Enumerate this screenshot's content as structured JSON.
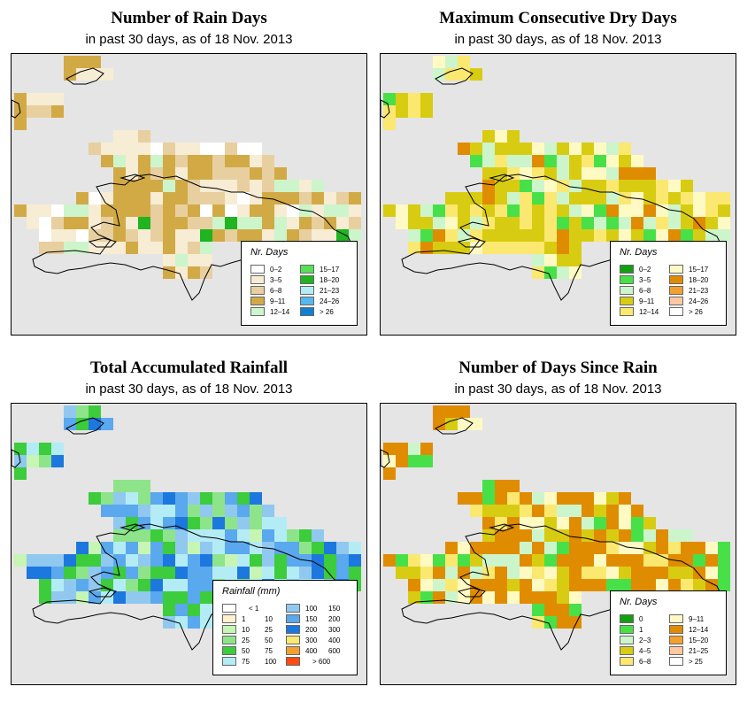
{
  "maps": [
    {
      "id": "rain-days",
      "title": "Number of Rain Days",
      "subtitle": "in past 30 days, as of  18 Nov. 2013",
      "legend": {
        "title": "Nr. Days",
        "items": [
          {
            "label": "0–2",
            "color": "#ffffff"
          },
          {
            "label": "3–5",
            "color": "#f7ecd4"
          },
          {
            "label": "6–8",
            "color": "#e8cfa0"
          },
          {
            "label": "9–11",
            "color": "#d2aa45"
          },
          {
            "label": "12–14",
            "color": "#ccf5cc"
          },
          {
            "label": "15–17",
            "color": "#55e055"
          },
          {
            "label": "18–20",
            "color": "#20b420"
          },
          {
            "label": "21–23",
            "color": "#b4ecf6"
          },
          {
            "label": "24–26",
            "color": "#55b8ee"
          },
          {
            "label": "> 26",
            "color": "#1080d0"
          }
        ]
      }
    },
    {
      "id": "dry-days",
      "title": "Maximum Consecutive Dry Days",
      "subtitle": "in past 30 days, as of  18 Nov. 2013",
      "legend": {
        "title": "Nr. Days",
        "items": [
          {
            "label": "0–2",
            "color": "#12a012"
          },
          {
            "label": "3–5",
            "color": "#48e048"
          },
          {
            "label": "6–8",
            "color": "#ccf5cc"
          },
          {
            "label": "9–11",
            "color": "#d8cc12"
          },
          {
            "label": "12–14",
            "color": "#fbe870"
          },
          {
            "label": "15–17",
            "color": "#fffac4"
          },
          {
            "label": "18–20",
            "color": "#e08c00"
          },
          {
            "label": "21–23",
            "color": "#f2a030"
          },
          {
            "label": "24–26",
            "color": "#ffc8a0"
          },
          {
            "label": "> 26",
            "color": "#ffffff"
          }
        ]
      }
    },
    {
      "id": "rainfall",
      "title": "Total Accumulated Rainfall",
      "subtitle": "in past 30 days, as of  18 Nov. 2013",
      "legend": {
        "title": "Rainfall (mm)",
        "items": [
          {
            "from": "",
            "to": "< 1",
            "color": "#ffffff"
          },
          {
            "from": "1",
            "to": "10",
            "color": "#fff0d0"
          },
          {
            "from": "10",
            "to": "25",
            "color": "#c6f5b4"
          },
          {
            "from": "25",
            "to": "50",
            "color": "#8ee48a"
          },
          {
            "from": "50",
            "to": "75",
            "color": "#3ccc3c"
          },
          {
            "from": "75",
            "to": "100",
            "color": "#b4ecf6"
          },
          {
            "from": "100",
            "to": "150",
            "color": "#90c8f0"
          },
          {
            "from": "150",
            "to": "200",
            "color": "#5aa8ee"
          },
          {
            "from": "200",
            "to": "300",
            "color": "#1c78de"
          },
          {
            "from": "300",
            "to": "400",
            "color": "#fbe870"
          },
          {
            "from": "400",
            "to": "600",
            "color": "#f2a030"
          },
          {
            "from": "",
            "to": "> 600",
            "color": "#ff4a10"
          }
        ]
      }
    },
    {
      "id": "days-since-rain",
      "title": "Number of Days Since Rain",
      "subtitle": "in past 30 days, as of  18 Nov. 2013",
      "legend": {
        "title": "Nr. Days",
        "items": [
          {
            "label": "0",
            "color": "#12a012"
          },
          {
            "label": "1",
            "color": "#48e048"
          },
          {
            "label": "2–3",
            "color": "#ccf5cc"
          },
          {
            "label": "4–5",
            "color": "#d8cc12"
          },
          {
            "label": "6–8",
            "color": "#fbe870"
          },
          {
            "label": "9–11",
            "color": "#fffac4"
          },
          {
            "label": "12–14",
            "color": "#e08c00"
          },
          {
            "label": "15–20",
            "color": "#f2a030"
          },
          {
            "label": "21–25",
            "color": "#ffc8a0"
          },
          {
            "label": "> 25",
            "color": "#ffffff"
          }
        ]
      }
    }
  ]
}
